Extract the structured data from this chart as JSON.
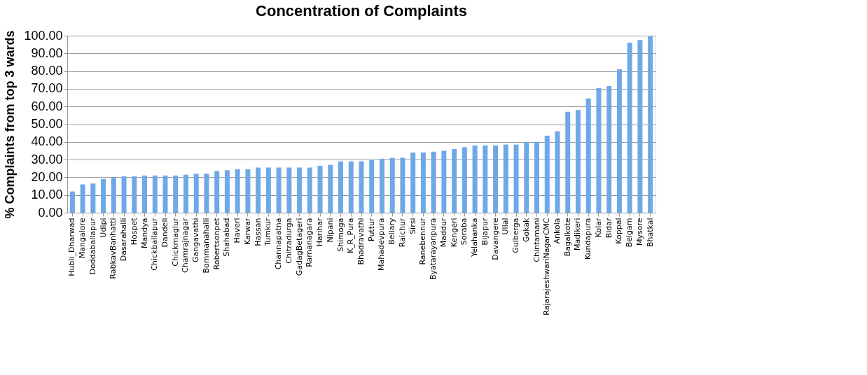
{
  "chart_data": {
    "type": "bar",
    "title": "Concentration of Complaints",
    "ylabel": "% Complaints from top 3 wards",
    "categories": [
      "Hubli_Dharwad",
      "Mangalore",
      "Doddaballapur",
      "Udipi",
      "RabkavBanhatti",
      "Dasarahalli",
      "Hospet",
      "Mandya",
      "Chickballapur",
      "Dandeli",
      "Chickmaglur",
      "Chamrajnagar",
      "Gangavathi",
      "Bommanahalli",
      "Robertsonpet",
      "Shahabad",
      "Haveri",
      "Karwar",
      "Hassan",
      "Tumkur",
      "Channapatna",
      "Chitradurga",
      "GadagBetageri",
      "Ramanagara",
      "Harihar",
      "Nipani",
      "Shimoga",
      "K_R_Pura",
      "Bhadravathi",
      "Puttur",
      "Mahadevpura",
      "Bellary",
      "Raichur",
      "Sirsi",
      "Ranebennur",
      "Byatarayanpura",
      "Maddur",
      "Kengeri",
      "Soraba",
      "Yelahanka",
      "Bijapur",
      "Davangere",
      "Ullal",
      "Gulberga",
      "Gokak",
      "Chintamani",
      "RajarajeshwariNagarCMC",
      "Ankola",
      "Bagalkote",
      "Madikeri",
      "Kundapura",
      "Kolar",
      "Bidar",
      "Koppal",
      "Belgam",
      "Mysore",
      "Bhatkal"
    ],
    "values": [
      12,
      16,
      16.5,
      19,
      20,
      20.5,
      20.5,
      21,
      21,
      21,
      21,
      21.5,
      22,
      22,
      23.5,
      24,
      24.5,
      24.5,
      25.5,
      25.5,
      25.5,
      25.5,
      25.5,
      25.5,
      26.5,
      27,
      29,
      29,
      29,
      30,
      30.5,
      31,
      31,
      34,
      34,
      34.5,
      35,
      36,
      37,
      38,
      38,
      38,
      38.5,
      38.5,
      40,
      40,
      43.5,
      46,
      57,
      58,
      64.5,
      70.5,
      71.5,
      81,
      96,
      97.5,
      99.5
    ],
    "color": "#6fa8e8",
    "ylim": [
      0,
      100
    ],
    "yticks": [
      {
        "value": 0,
        "label": "0.00"
      },
      {
        "value": 10,
        "label": "10.00"
      },
      {
        "value": 20,
        "label": "20.00"
      },
      {
        "value": 30,
        "label": "30.00"
      },
      {
        "value": 40,
        "label": "40.00"
      },
      {
        "value": 50,
        "label": "50.00"
      },
      {
        "value": 60,
        "label": "60.00"
      },
      {
        "value": 70,
        "label": "70.00"
      },
      {
        "value": 80,
        "label": "80.00"
      },
      {
        "value": 90,
        "label": "90.00"
      },
      {
        "value": 100,
        "label": "100.00"
      }
    ],
    "grid": "y"
  }
}
